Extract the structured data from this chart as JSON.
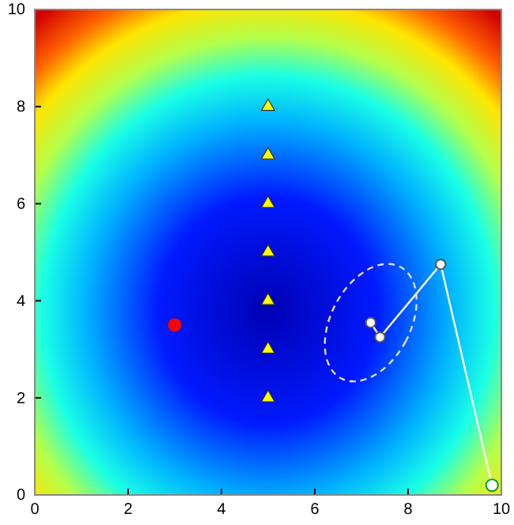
{
  "chart_data": {
    "type": "scatter",
    "xlim": [
      0,
      10
    ],
    "ylim": [
      0,
      10
    ],
    "xticks": [
      0,
      2,
      4,
      6,
      8,
      10
    ],
    "yticks": [
      0,
      2,
      4,
      6,
      8,
      10
    ],
    "series": [
      {
        "color": "#ffff00",
        "marker": "triangle",
        "x": [
          5,
          5,
          5,
          5,
          5,
          5,
          5
        ],
        "values": [
          2,
          3,
          4,
          5,
          6,
          7,
          8
        ]
      },
      {
        "color": "#ff0000",
        "marker": "circle",
        "x": [
          3
        ],
        "values": [
          3.5
        ]
      },
      {
        "type": "line",
        "color": "#ffffff",
        "marker": "circle",
        "x": [
          9.8,
          8.7,
          7.4,
          7.2
        ],
        "values": [
          0.2,
          4.75,
          3.25,
          3.55
        ]
      },
      {
        "color": "#00a040",
        "marker": "circle",
        "x": [
          9.8
        ],
        "values": [
          0.2
        ]
      }
    ]
  }
}
